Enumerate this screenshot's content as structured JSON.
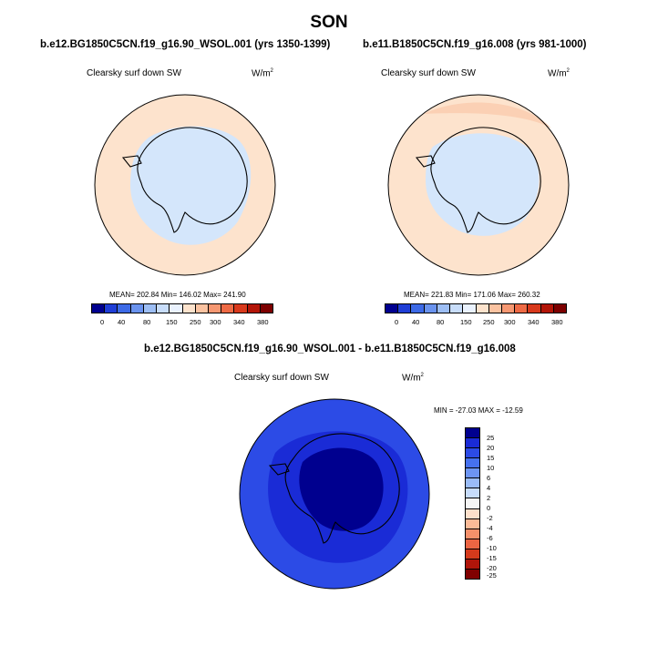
{
  "title": "SON",
  "colors": {
    "abs_palette": [
      "#00008f",
      "#1f3ed6",
      "#3d6ae6",
      "#6a93ee",
      "#9dbef4",
      "#c8ddfa",
      "#eaf2fe",
      "#fde3cd",
      "#fbc3a1",
      "#f69872",
      "#ee6a45",
      "#d8391c",
      "#b31508",
      "#7d0000"
    ],
    "diff_palette": [
      "#00008f",
      "#1a2bd6",
      "#2c4be6",
      "#4671ef",
      "#6d95f3",
      "#9abcf7",
      "#c7dcfb",
      "#f5f5f5",
      "#fde0cb",
      "#fbba97",
      "#f5906a",
      "#ec6543",
      "#d53a1c",
      "#b0150a",
      "#800000"
    ],
    "land": "#000000"
  },
  "panels": [
    {
      "case": "b.e12.BG1850C5CN.f19_g16.90_WSOL.001 (yrs 1350-1399)",
      "variable": "Clearsky surf down SW",
      "units_base": "W/m",
      "units_exp": "2",
      "stats": "MEAN= 202.84  Min= 146.02  Max= 241.90",
      "colorbar_ticks": [
        "0",
        "40",
        "80",
        "150",
        "250",
        "300",
        "340",
        "380"
      ],
      "ocean_color": "#fde3cd",
      "inner_color": "#d4e6fb"
    },
    {
      "case": "b.e11.B1850C5CN.f19_g16.008 (yrs 981-1000)",
      "variable": "Clearsky surf down SW",
      "units_base": "W/m",
      "units_exp": "2",
      "stats": "MEAN= 221.83  Min= 171.06  Max= 260.32",
      "colorbar_ticks": [
        "0",
        "40",
        "80",
        "150",
        "250",
        "300",
        "340",
        "380"
      ],
      "ocean_color": "#fde3cd",
      "inner_color": "#d4e6fb"
    }
  ],
  "difference": {
    "title": "b.e12.BG1850C5CN.f19_g16.90_WSOL.001 - b.e11.B1850C5CN.f19_g16.008",
    "variable": "Clearsky surf down SW",
    "units_base": "W/m",
    "units_exp": "2",
    "stats": "MIN = -27.03  MAX = -12.59",
    "colorbar_ticks": [
      "25",
      "20",
      "15",
      "10",
      "6",
      "4",
      "2",
      "0",
      "-2",
      "-4",
      "-6",
      "-10",
      "-15",
      "-20",
      "-25"
    ]
  }
}
